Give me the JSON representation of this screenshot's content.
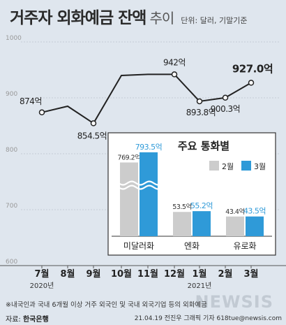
{
  "header": {
    "title": "거주자 외화예금 잔액",
    "title_sub": "추이",
    "unit": "단위: 달러, 기말기준"
  },
  "chart_data": [
    {
      "type": "line",
      "ylim": [
        600,
        1000
      ],
      "yticks": [
        600,
        700,
        800,
        900,
        1000
      ],
      "categories": [
        "7월",
        "8월",
        "9월",
        "10월",
        "11월",
        "12월",
        "1월",
        "2월",
        "3월"
      ],
      "year_labels": [
        {
          "at": "7월",
          "text": "2020년"
        },
        {
          "at": "1월",
          "text": "2021년"
        }
      ],
      "values": [
        874,
        885,
        854.5,
        940,
        942,
        942,
        893.8,
        900.3,
        927.0
      ],
      "data_labels": [
        {
          "index": 0,
          "text": "874억"
        },
        {
          "index": 2,
          "text": "854.5억"
        },
        {
          "index": 5,
          "text": "942억"
        },
        {
          "index": 6,
          "text": "893.8억"
        },
        {
          "index": 7,
          "text": "900.3억"
        },
        {
          "index": 8,
          "text": "927.0억"
        }
      ],
      "grid": true
    },
    {
      "type": "bar",
      "title": "주요 통화별",
      "categories": [
        "미달러화",
        "엔화",
        "유로화"
      ],
      "series": [
        {
          "name": "2월",
          "color": "#cccccc",
          "values": [
            769.2,
            53.5,
            43.4
          ],
          "labels": [
            "769.2억",
            "53.5억",
            "43.4억"
          ]
        },
        {
          "name": "3월",
          "color": "#2f9ad8",
          "values": [
            793.5,
            55.2,
            43.5
          ],
          "labels": [
            "793.5억",
            "55.2억",
            "43.5억"
          ]
        }
      ],
      "axis_break": true
    }
  ],
  "footer": {
    "note": "※내국인과 국내 6개월 이상 거주 외국인 및 국내 외국기업 등의 외화예금",
    "source_label": "자료:",
    "source": "한국은행",
    "credit": "21.04.19 전진우 그래픽 기자 618tue@newsis.com",
    "watermark": "NEWSIS"
  },
  "colors": {
    "line": "#222222",
    "feb_bar": "#cccccc",
    "mar_bar": "#2f9ad8",
    "mar_label": "#2f9ad8"
  }
}
